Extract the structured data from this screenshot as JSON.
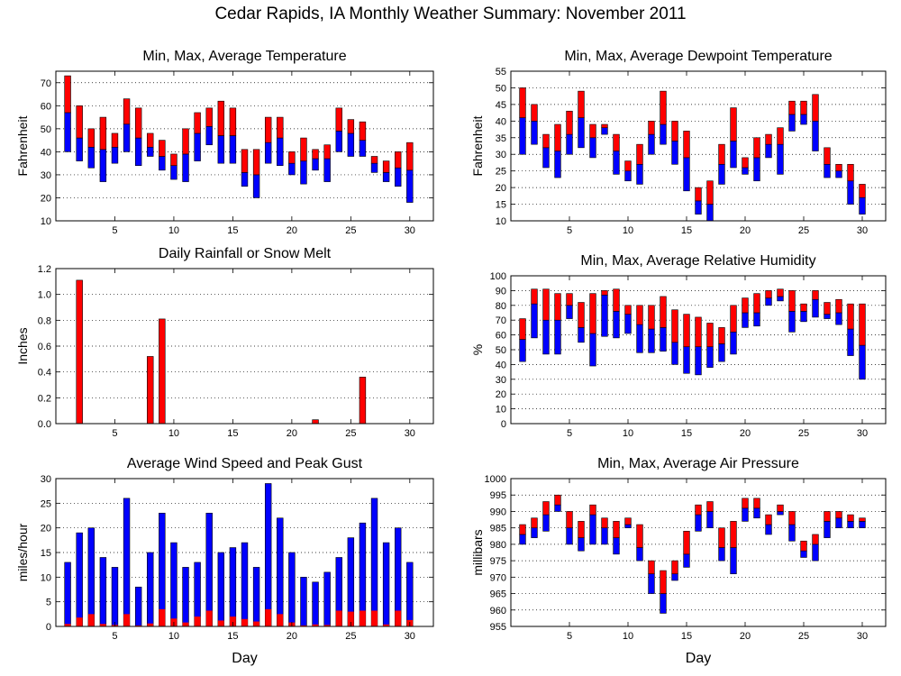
{
  "page": {
    "title": "Cedar Rapids, IA Monthly Weather Summary: November 2011"
  },
  "colors": {
    "above_avg": "#ff0000",
    "below_avg": "#0000ff",
    "edge": "#000000",
    "grid": "#000000"
  },
  "chart_data": [
    {
      "id": "temp",
      "type": "floating-bar",
      "title": "Min, Max, Average Temperature",
      "xlabel": "",
      "ylabel": "Fahrenheit",
      "xlim": [
        0,
        32
      ],
      "ylim": [
        10,
        75
      ],
      "xticks": [
        5,
        10,
        15,
        20,
        25,
        30
      ],
      "yticks": [
        10,
        20,
        30,
        40,
        50,
        60,
        70
      ],
      "grid": true,
      "x": [
        1,
        2,
        3,
        4,
        5,
        6,
        7,
        8,
        9,
        10,
        11,
        12,
        13,
        14,
        15,
        16,
        17,
        18,
        19,
        20,
        21,
        22,
        23,
        24,
        25,
        26,
        27,
        28,
        29,
        30
      ],
      "min": [
        40,
        36,
        33,
        27,
        35,
        40,
        34,
        38,
        32,
        28,
        27,
        36,
        43,
        35,
        35,
        25,
        20,
        35,
        34,
        30,
        26,
        32,
        27,
        40,
        38,
        38,
        31,
        27,
        25,
        18
      ],
      "avg": [
        57,
        46,
        42,
        41,
        42,
        52,
        46,
        42,
        38,
        34,
        39,
        48,
        51,
        47,
        47,
        31,
        30,
        44,
        46,
        35,
        36,
        37,
        37,
        49,
        48,
        45,
        35,
        31,
        33,
        32
      ],
      "max": [
        73,
        60,
        50,
        55,
        48,
        63,
        59,
        48,
        45,
        39,
        50,
        57,
        59,
        62,
        59,
        41,
        41,
        55,
        55,
        40,
        46,
        41,
        43,
        59,
        54,
        53,
        38,
        36,
        40,
        44
      ]
    },
    {
      "id": "dewpoint",
      "type": "floating-bar",
      "title": "Min, Max, Average Dewpoint Temperature",
      "xlabel": "",
      "ylabel": "Fahrenheit",
      "xlim": [
        0,
        32
      ],
      "ylim": [
        10,
        55
      ],
      "xticks": [
        5,
        10,
        15,
        20,
        25,
        30
      ],
      "yticks": [
        10,
        15,
        20,
        25,
        30,
        35,
        40,
        45,
        50,
        55
      ],
      "grid": true,
      "x": [
        1,
        2,
        3,
        4,
        5,
        6,
        7,
        8,
        9,
        10,
        11,
        12,
        13,
        14,
        15,
        16,
        17,
        18,
        19,
        20,
        21,
        22,
        23,
        24,
        25,
        26,
        27,
        28,
        29,
        30
      ],
      "min": [
        30,
        33,
        26,
        23,
        30,
        32,
        29,
        36,
        24,
        22,
        21,
        30,
        33,
        27,
        19,
        12,
        10,
        21,
        26,
        24,
        22,
        29,
        24,
        37,
        39,
        31,
        23,
        23,
        15,
        12
      ],
      "avg": [
        41,
        40,
        32,
        31,
        36,
        41,
        35,
        38,
        31,
        25,
        27,
        36,
        39,
        34,
        29,
        16,
        15,
        27,
        34,
        26,
        29,
        33,
        33,
        42,
        42,
        40,
        27,
        25,
        22,
        17
      ],
      "max": [
        50,
        45,
        36,
        39,
        43,
        49,
        39,
        39,
        36,
        28,
        33,
        40,
        49,
        40,
        37,
        20,
        22,
        33,
        44,
        29,
        35,
        36,
        38,
        46,
        46,
        48,
        32,
        27,
        27,
        21
      ]
    },
    {
      "id": "rain",
      "type": "bar",
      "title": "Daily Rainfall or Snow Melt",
      "xlabel": "",
      "ylabel": "Inches",
      "xlim": [
        0,
        32
      ],
      "ylim": [
        0,
        1.2
      ],
      "xticks": [
        5,
        10,
        15,
        20,
        25,
        30
      ],
      "yticks": [
        0,
        0.2,
        0.4,
        0.6,
        0.8,
        1.0,
        1.2
      ],
      "yticklabels": [
        "0.0",
        "0.2",
        "0.4",
        "0.6",
        "0.8",
        "1.0",
        "1.2"
      ],
      "grid": true,
      "x": [
        2,
        8,
        9,
        22,
        26
      ],
      "values": [
        1.11,
        0.52,
        0.81,
        0.03,
        0.36
      ]
    },
    {
      "id": "rh",
      "type": "floating-bar",
      "title": "Min, Max, Average Relative Humidity",
      "xlabel": "",
      "ylabel": "%",
      "xlim": [
        0,
        32
      ],
      "ylim": [
        0,
        100
      ],
      "xticks": [
        5,
        10,
        15,
        20,
        25,
        30
      ],
      "yticks": [
        0,
        10,
        20,
        30,
        40,
        50,
        60,
        70,
        80,
        90,
        100
      ],
      "grid": true,
      "x": [
        1,
        2,
        3,
        4,
        5,
        6,
        7,
        8,
        9,
        10,
        11,
        12,
        13,
        14,
        15,
        16,
        17,
        18,
        19,
        20,
        21,
        22,
        23,
        24,
        25,
        26,
        27,
        28,
        29,
        30
      ],
      "min": [
        42,
        58,
        47,
        47,
        71,
        55,
        39,
        59,
        58,
        61,
        48,
        48,
        49,
        40,
        34,
        33,
        38,
        42,
        47,
        65,
        66,
        80,
        83,
        62,
        69,
        72,
        71,
        67,
        46,
        30
      ],
      "avg": [
        57,
        81,
        70,
        70,
        80,
        65,
        61,
        87,
        76,
        74,
        67,
        64,
        65,
        55,
        52,
        52,
        52,
        54,
        62,
        75,
        75,
        85,
        86,
        76,
        76,
        84,
        74,
        75,
        64,
        53
      ],
      "max": [
        71,
        91,
        91,
        88,
        88,
        82,
        88,
        90,
        91,
        80,
        80,
        80,
        86,
        77,
        74,
        72,
        68,
        65,
        80,
        85,
        88,
        90,
        91,
        90,
        81,
        90,
        82,
        84,
        81,
        81
      ]
    },
    {
      "id": "wind",
      "type": "bar",
      "title": "Average Wind Speed and Peak Gust",
      "xlabel": "Day",
      "ylabel": "miles/hour",
      "xlim": [
        0,
        32
      ],
      "ylim": [
        0,
        30
      ],
      "xticks": [
        5,
        10,
        15,
        20,
        25,
        30
      ],
      "yticks": [
        0,
        5,
        10,
        15,
        20,
        25,
        30
      ],
      "grid": true,
      "x": [
        1,
        2,
        3,
        4,
        5,
        6,
        7,
        8,
        9,
        10,
        11,
        12,
        13,
        14,
        15,
        16,
        17,
        18,
        19,
        20,
        21,
        22,
        23,
        24,
        25,
        26,
        27,
        28,
        29,
        30
      ],
      "gust": [
        13,
        19,
        20,
        14,
        12,
        26,
        8,
        15,
        23,
        17,
        12,
        13,
        23,
        15,
        16,
        17,
        12,
        29,
        22,
        15,
        10,
        9,
        11,
        14,
        18,
        21,
        26,
        17,
        20,
        13
      ],
      "avg_speed": [
        0.5,
        1.8,
        2.5,
        0.5,
        0.3,
        2.5,
        0.2,
        0.6,
        3.5,
        1.6,
        0.8,
        2.0,
        3.2,
        1.2,
        2.0,
        1.5,
        1.0,
        3.5,
        2.5,
        0.8,
        0.2,
        0.4,
        0.3,
        3.2,
        3.0,
        3.2,
        3.2,
        0.4,
        3.2,
        1.3
      ]
    },
    {
      "id": "pressure",
      "type": "floating-bar",
      "title": "Min, Max, Average Air Pressure",
      "xlabel": "Day",
      "ylabel": "millibars",
      "xlim": [
        0,
        32
      ],
      "ylim": [
        955,
        1000
      ],
      "xticks": [
        5,
        10,
        15,
        20,
        25,
        30
      ],
      "yticks": [
        955,
        960,
        965,
        970,
        975,
        980,
        985,
        990,
        995,
        1000
      ],
      "grid": true,
      "x": [
        1,
        2,
        3,
        4,
        5,
        6,
        7,
        8,
        9,
        10,
        11,
        12,
        13,
        14,
        15,
        16,
        17,
        18,
        19,
        20,
        21,
        22,
        23,
        24,
        25,
        26,
        27,
        28,
        29,
        30
      ],
      "min": [
        980,
        982,
        984,
        990,
        980,
        978,
        980,
        980,
        977,
        985,
        975,
        965,
        959,
        969,
        973,
        984,
        985,
        975,
        971,
        987,
        988,
        983,
        989,
        981,
        976,
        975,
        982,
        985,
        985,
        985
      ],
      "avg": [
        983,
        985,
        989,
        992,
        985,
        982,
        989,
        985,
        982,
        986,
        979,
        971,
        965,
        971,
        977,
        989,
        990,
        979,
        979,
        991,
        991,
        986,
        990,
        986,
        978,
        980,
        987,
        988,
        987,
        987
      ],
      "max": [
        986,
        988,
        993,
        995,
        990,
        987,
        992,
        988,
        987,
        988,
        986,
        975,
        972,
        975,
        984,
        992,
        993,
        985,
        987,
        994,
        994,
        989,
        992,
        990,
        981,
        983,
        990,
        990,
        989,
        988
      ]
    }
  ]
}
